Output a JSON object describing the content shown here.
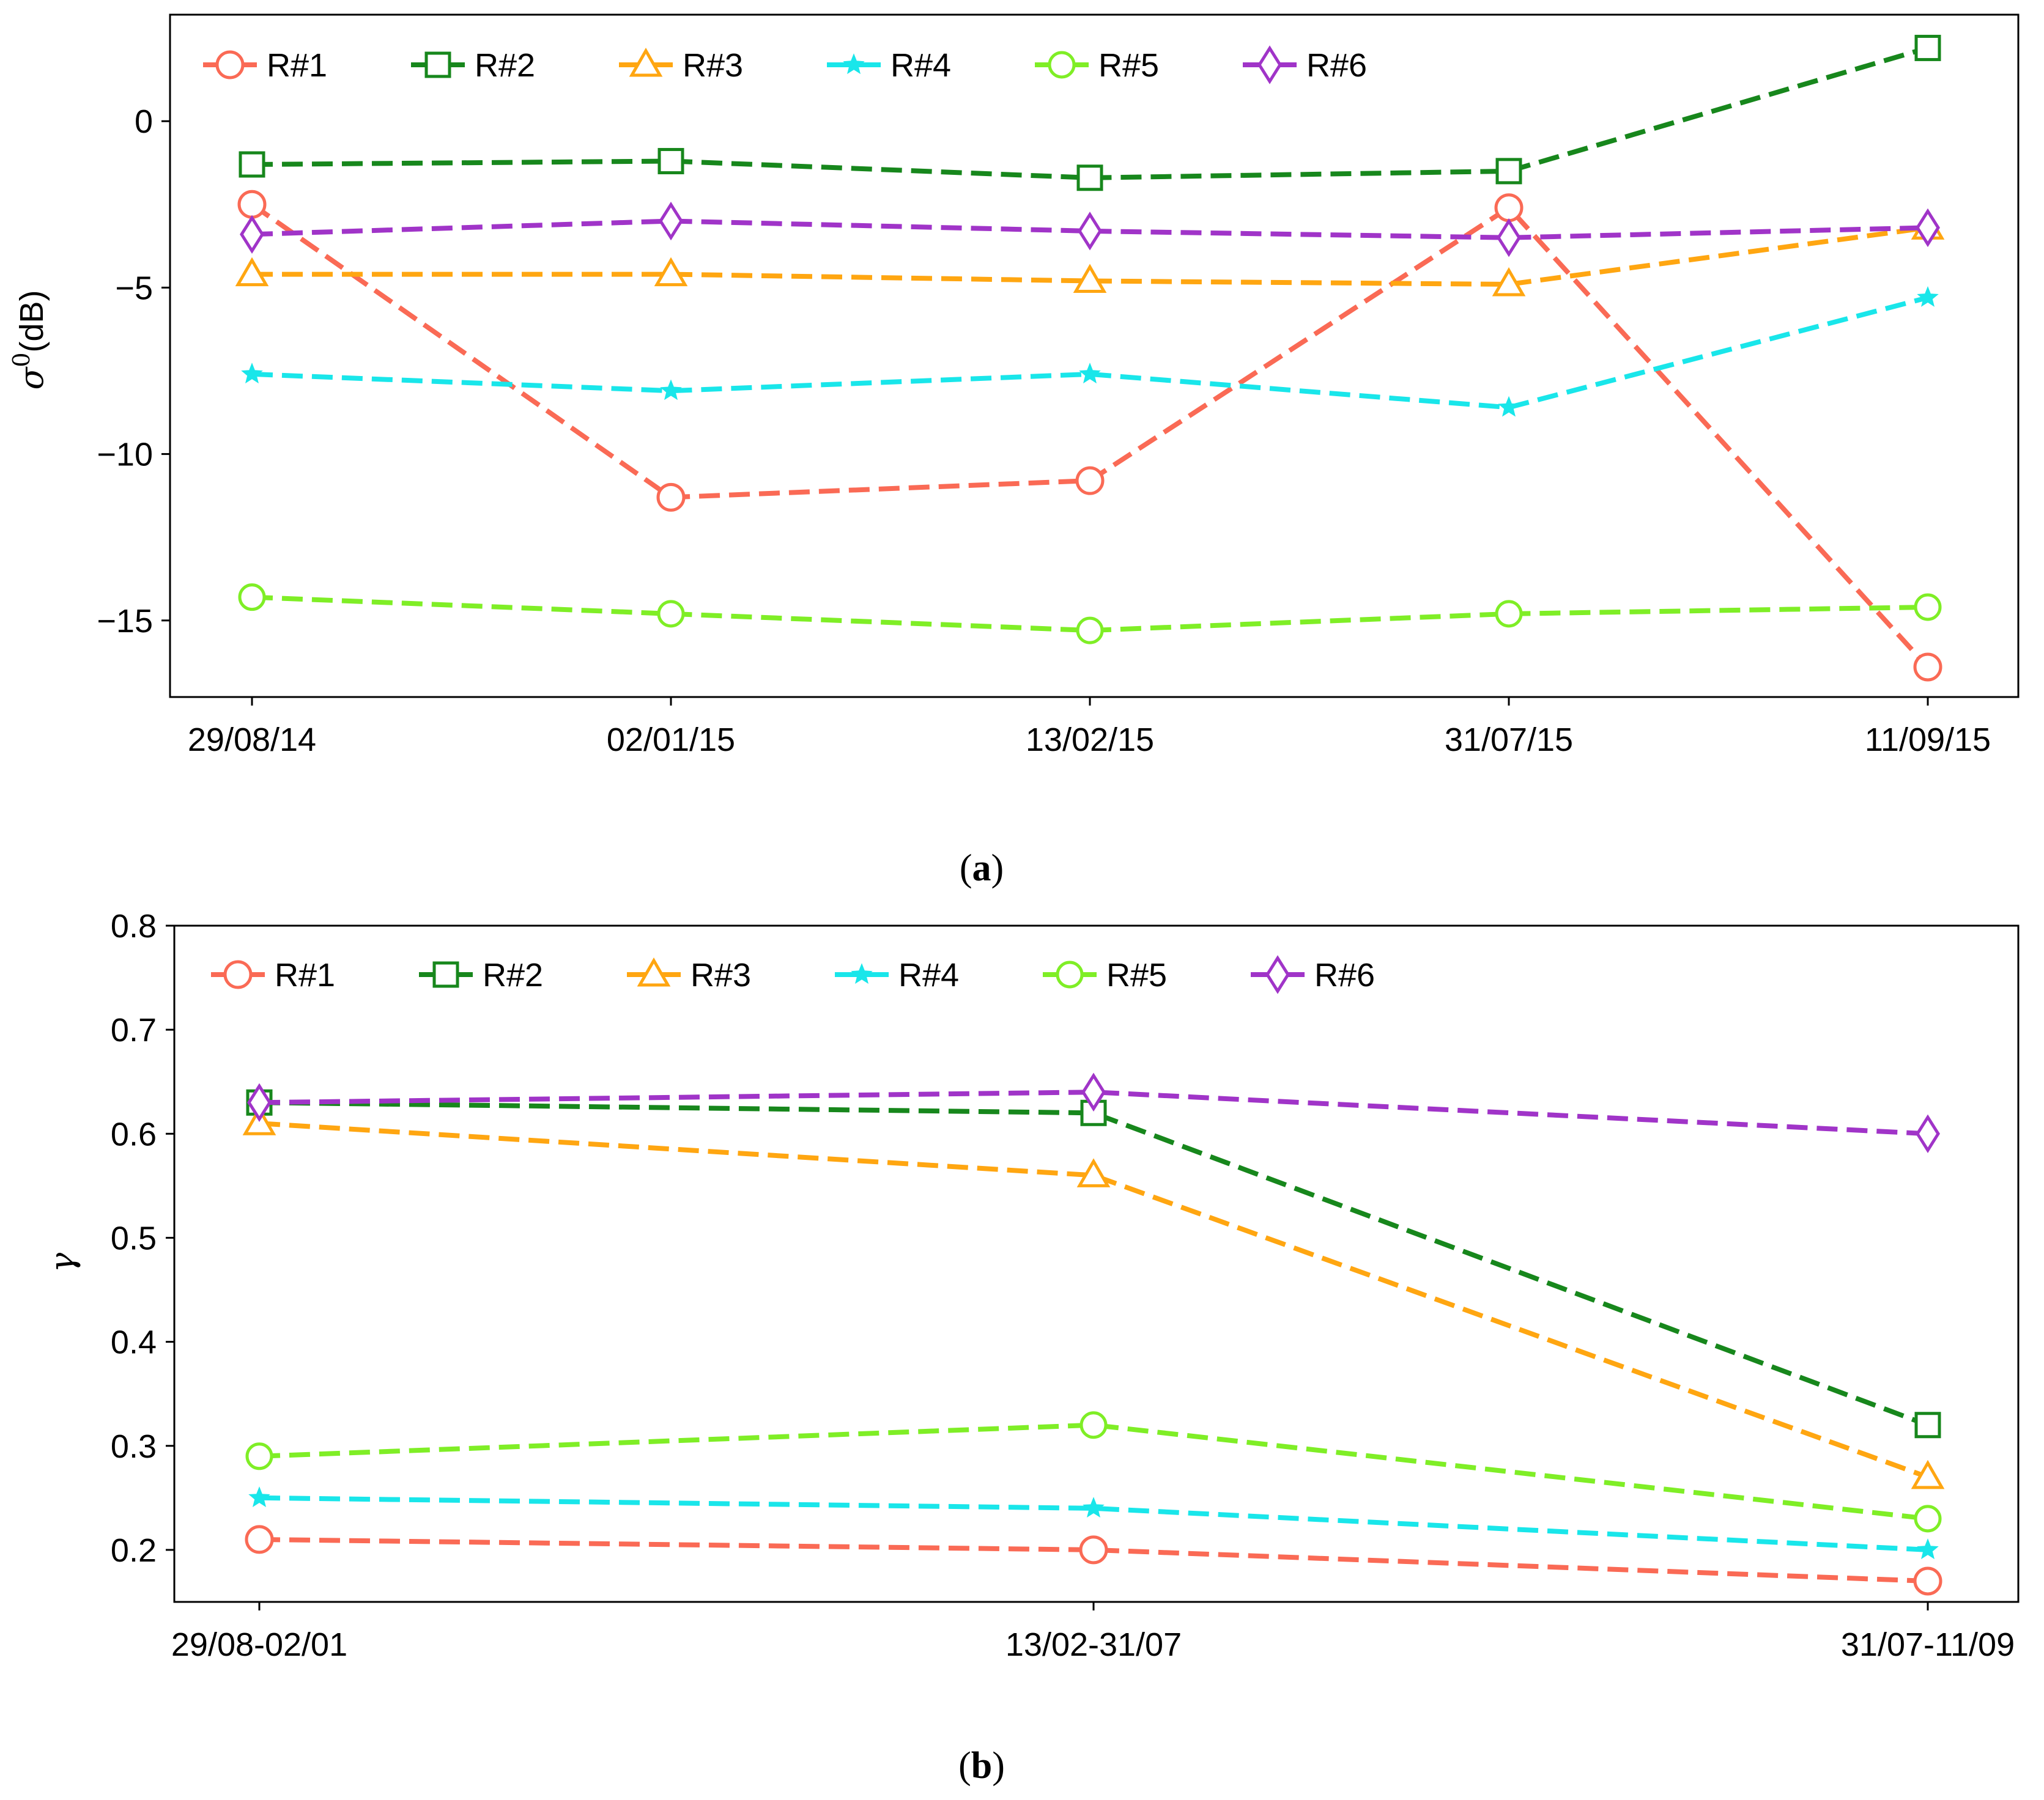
{
  "chart_data": [
    {
      "type": "line",
      "panel_caption": {
        "open": "(",
        "letter": "a",
        "close": ")"
      },
      "title": "",
      "xlabel": "",
      "ylabel": {
        "symbol": "σ",
        "superscript": "0",
        "unit": "(dB)"
      },
      "categories": [
        "29/08/14",
        "02/01/15",
        "13/02/15",
        "31/07/15",
        "11/09/15"
      ],
      "ylim": [
        -17.3,
        3.2
      ],
      "yticks": [
        0,
        -5,
        -10,
        -15
      ],
      "ytick_labels": [
        "0",
        "−5",
        "−10",
        "−15"
      ],
      "legend_position": "top-left",
      "series": [
        {
          "name": "R#1",
          "color": "#fa6a55",
          "marker": "circle",
          "values": [
            -2.5,
            -11.3,
            -10.8,
            -2.6,
            -16.4
          ]
        },
        {
          "name": "R#2",
          "color": "#17871c",
          "marker": "square",
          "values": [
            -1.3,
            -1.2,
            -1.7,
            -1.5,
            2.2
          ]
        },
        {
          "name": "R#3",
          "color": "#ffa611",
          "marker": "triangle",
          "values": [
            -4.6,
            -4.6,
            -4.8,
            -4.9,
            -3.2
          ]
        },
        {
          "name": "R#4",
          "color": "#19e6ea",
          "marker": "star",
          "values": [
            -7.6,
            -8.1,
            -7.6,
            -8.6,
            -5.3
          ]
        },
        {
          "name": "R#5",
          "color": "#7fee26",
          "marker": "hexagon",
          "values": [
            -14.3,
            -14.8,
            -15.3,
            -14.8,
            -14.6
          ]
        },
        {
          "name": "R#6",
          "color": "#a034c8",
          "marker": "diamond",
          "values": [
            -3.4,
            -3.0,
            -3.3,
            -3.5,
            -3.2
          ]
        }
      ]
    },
    {
      "type": "line",
      "panel_caption": {
        "open": "(",
        "letter": "b",
        "close": ")"
      },
      "title": "",
      "xlabel": "",
      "ylabel": {
        "symbol": "γ"
      },
      "categories": [
        "29/08-02/01",
        "13/02-31/07",
        "31/07-11/09"
      ],
      "ylim": [
        0.15,
        0.8
      ],
      "yticks": [
        0.2,
        0.3,
        0.4,
        0.5,
        0.6,
        0.7,
        0.8
      ],
      "ytick_labels": [
        "0.2",
        "0.3",
        "0.4",
        "0.5",
        "0.6",
        "0.7",
        "0.8"
      ],
      "legend_position": "top-left",
      "series": [
        {
          "name": "R#1",
          "color": "#fa6a55",
          "marker": "circle",
          "values": [
            0.21,
            0.2,
            0.17
          ]
        },
        {
          "name": "R#2",
          "color": "#17871c",
          "marker": "square",
          "values": [
            0.63,
            0.62,
            0.32
          ]
        },
        {
          "name": "R#3",
          "color": "#ffa611",
          "marker": "triangle",
          "values": [
            0.61,
            0.56,
            0.27
          ]
        },
        {
          "name": "R#4",
          "color": "#19e6ea",
          "marker": "star",
          "values": [
            0.25,
            0.24,
            0.2
          ]
        },
        {
          "name": "R#5",
          "color": "#7fee26",
          "marker": "hexagon",
          "values": [
            0.29,
            0.32,
            0.23
          ]
        },
        {
          "name": "R#6",
          "color": "#a034c8",
          "marker": "diamond",
          "values": [
            0.63,
            0.64,
            0.6
          ]
        }
      ]
    }
  ]
}
